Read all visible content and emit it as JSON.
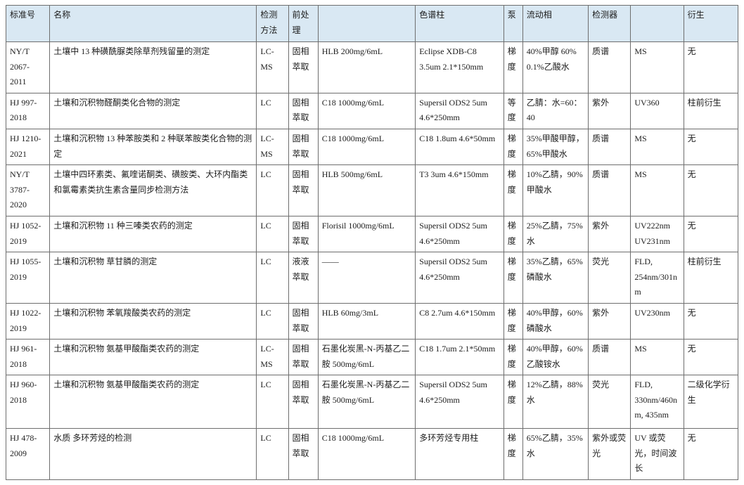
{
  "styles": {
    "header_bg": "#d9e8f3",
    "border_color": "#6e6e6e"
  },
  "table": {
    "columns": [
      "标准号",
      "名称",
      "检测方法",
      "前处理",
      "",
      "色谱柱",
      "泵",
      "流动相",
      "检测器",
      "",
      "衍生"
    ],
    "rows": [
      [
        "NY/T 2067-2011",
        "土壤中 13 种磺酰脲类除草剂残留量的测定",
        "LC-MS",
        "固相萃取",
        "HLB 200mg/6mL",
        "Eclipse XDB-C8 3.5um 2.1*150mm",
        "梯度",
        "40%甲醇 60% 0.1%乙酸水",
        "质谱",
        "MS",
        "无"
      ],
      [
        "HJ 997-2018",
        "土壤和沉积物醛酮类化合物的测定",
        "LC",
        "固相萃取",
        "C18 1000mg/6mL",
        "Supersil ODS2 5um 4.6*250mm",
        "等度",
        "乙腈：水=60：40",
        "紫外",
        "UV360",
        "柱前衍生"
      ],
      [
        "HJ 1210-2021",
        "土壤和沉积物 13 种苯胺类和 2 种联苯胺类化合物的测定",
        "LC-MS",
        "固相萃取",
        "C18 1000mg/6mL",
        "C18 1.8um 4.6*50mm",
        "梯度",
        "35%甲酸甲醇，65%甲酸水",
        "质谱",
        "MS",
        "无"
      ],
      [
        "NY/T 3787-2020",
        "土壤中四环素类、氟喹诺酮类、磺胺类、大环内酯类和氯霉素类抗生素含量同步检测方法",
        "LC",
        "固相萃取",
        "HLB 500mg/6mL",
        "T3 3um  4.6*150mm",
        "梯度",
        "10%乙腈，90%甲酸水",
        "质谱",
        "MS",
        "无"
      ],
      [
        "HJ 1052-2019",
        "土壤和沉积物 11 种三嗪类农药的测定",
        "LC",
        "固相萃取",
        "Florisil 1000mg/6mL",
        "Supersil ODS2 5um 4.6*250mm",
        "梯度",
        "25%乙腈，75%水",
        "紫外",
        "UV222nm\nUV231nm",
        "无"
      ],
      [
        "HJ 1055-2019",
        "土壤和沉积物 草甘膦的测定",
        "LC",
        "液液萃取",
        "——",
        "Supersil ODS2 5um 4.6*250mm",
        "梯度",
        "35%乙腈，65%磷酸水",
        "荧光",
        "FLD, 254nm/301nm",
        "柱前衍生"
      ],
      [
        "HJ 1022-2019",
        "土壤和沉积物 苯氧羧酸类农药的测定",
        "LC",
        "固相萃取",
        "HLB 60mg/3mL",
        "C8 2.7um 4.6*150mm",
        "梯度",
        "40%甲醇，60%磷酸水",
        "紫外",
        "UV230nm",
        "无"
      ],
      [
        "HJ 961-2018",
        "土壤和沉积物 氨基甲酸酯类农药的测定",
        "LC-MS",
        "固相萃取",
        "石墨化炭黑-N-丙基乙二胺 500mg/6mL",
        "C18 1.7um 2.1*50mm",
        "梯度",
        "40%甲醇，60%乙酸铵水",
        "质谱",
        "MS",
        "无"
      ],
      [
        "HJ 960-2018",
        "土壤和沉积物 氨基甲酸酯类农药的测定",
        "LC",
        "固相萃取",
        "石墨化炭黑-N-丙基乙二胺 500mg/6mL",
        "Supersil ODS2 5um 4.6*250mm",
        "梯度",
        "12%乙腈，88%水",
        "荧光",
        "FLD, 330nm/460nm, 435nm",
        "二级化学衍生"
      ],
      [
        "HJ 478-2009",
        "水质 多环芳烃的检测",
        "LC",
        "固相萃取",
        "C18 1000mg/6mL",
        "多环芳烃专用柱",
        "梯度",
        "65%乙腈，35%水",
        "紫外或荧光",
        "UV 或荧光，时间波长",
        "无"
      ]
    ]
  }
}
